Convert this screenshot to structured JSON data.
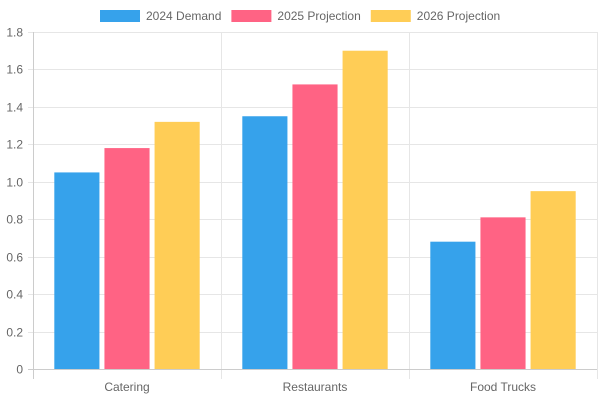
{
  "chart_data": {
    "type": "bar",
    "categories": [
      "Catering",
      "Restaurants",
      "Food Trucks"
    ],
    "series": [
      {
        "name": "2024 Demand",
        "values": [
          1.05,
          1.35,
          0.68
        ],
        "color": "#36a2eb"
      },
      {
        "name": "2025 Projection",
        "values": [
          1.18,
          1.52,
          0.81
        ],
        "color": "#ff6384"
      },
      {
        "name": "2026 Projection",
        "values": [
          1.32,
          1.7,
          0.95
        ],
        "color": "#ffcd56"
      }
    ],
    "y_ticks": [
      "0",
      "0.2",
      "0.4",
      "0.6",
      "0.8",
      "1.0",
      "1.2",
      "1.4",
      "1.6",
      "1.8"
    ],
    "ylim": [
      0,
      1.8
    ],
    "grid": true,
    "legend_position": "top"
  }
}
